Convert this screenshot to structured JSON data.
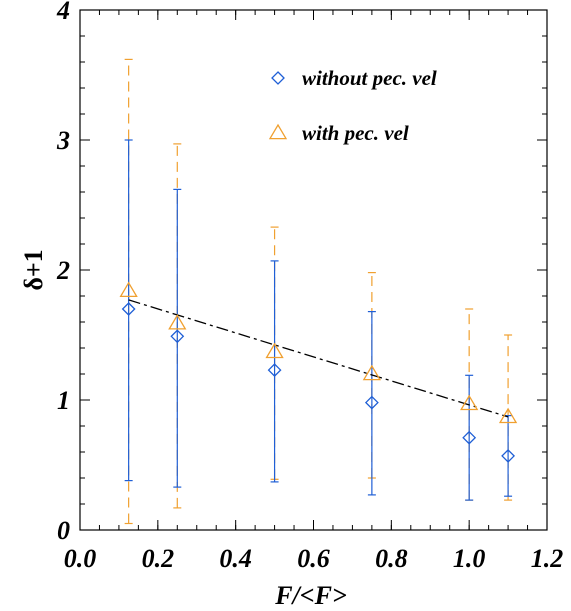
{
  "chart_data": {
    "type": "scatter",
    "xlabel": "F/<F>",
    "ylabel": "δ+1",
    "xlim": [
      0.0,
      1.2
    ],
    "ylim": [
      0,
      4
    ],
    "x_ticks": [
      "0.0",
      "0.2",
      "0.4",
      "0.6",
      "0.8",
      "1.0",
      "1.2"
    ],
    "y_ticks": [
      "0",
      "1",
      "2",
      "3",
      "4"
    ],
    "grid": false,
    "legend_position": "top-right",
    "series": [
      {
        "name": "without pec. vel",
        "marker": "diamond",
        "color": "#1f5fd6",
        "error_style": "solid",
        "points": [
          {
            "x": 0.125,
            "y": 1.7,
            "lo": 0.38,
            "hi": 3.0
          },
          {
            "x": 0.25,
            "y": 1.49,
            "lo": 0.33,
            "hi": 2.62
          },
          {
            "x": 0.5,
            "y": 1.23,
            "lo": 0.37,
            "hi": 2.07
          },
          {
            "x": 0.75,
            "y": 0.98,
            "lo": 0.27,
            "hi": 1.68
          },
          {
            "x": 1.0,
            "y": 0.71,
            "lo": 0.23,
            "hi": 1.19
          },
          {
            "x": 1.1,
            "y": 0.57,
            "lo": 0.26,
            "hi": 0.88
          }
        ]
      },
      {
        "name": "with pec. vel",
        "marker": "triangle",
        "color": "#f0a030",
        "error_style": "dashed",
        "points": [
          {
            "x": 0.125,
            "y": 1.84,
            "lo": 0.05,
            "hi": 3.62
          },
          {
            "x": 0.25,
            "y": 1.59,
            "lo": 0.17,
            "hi": 2.97
          },
          {
            "x": 0.5,
            "y": 1.37,
            "lo": 0.39,
            "hi": 2.33
          },
          {
            "x": 0.75,
            "y": 1.2,
            "lo": 0.4,
            "hi": 1.98
          },
          {
            "x": 1.0,
            "y": 0.97,
            "lo": 0.23,
            "hi": 1.7
          },
          {
            "x": 1.1,
            "y": 0.87,
            "lo": 0.23,
            "hi": 1.5
          }
        ]
      }
    ],
    "fit_line": {
      "x": [
        0.125,
        1.1
      ],
      "y": [
        1.77,
        0.87
      ],
      "style": "dash-dot",
      "color": "#000000"
    }
  }
}
